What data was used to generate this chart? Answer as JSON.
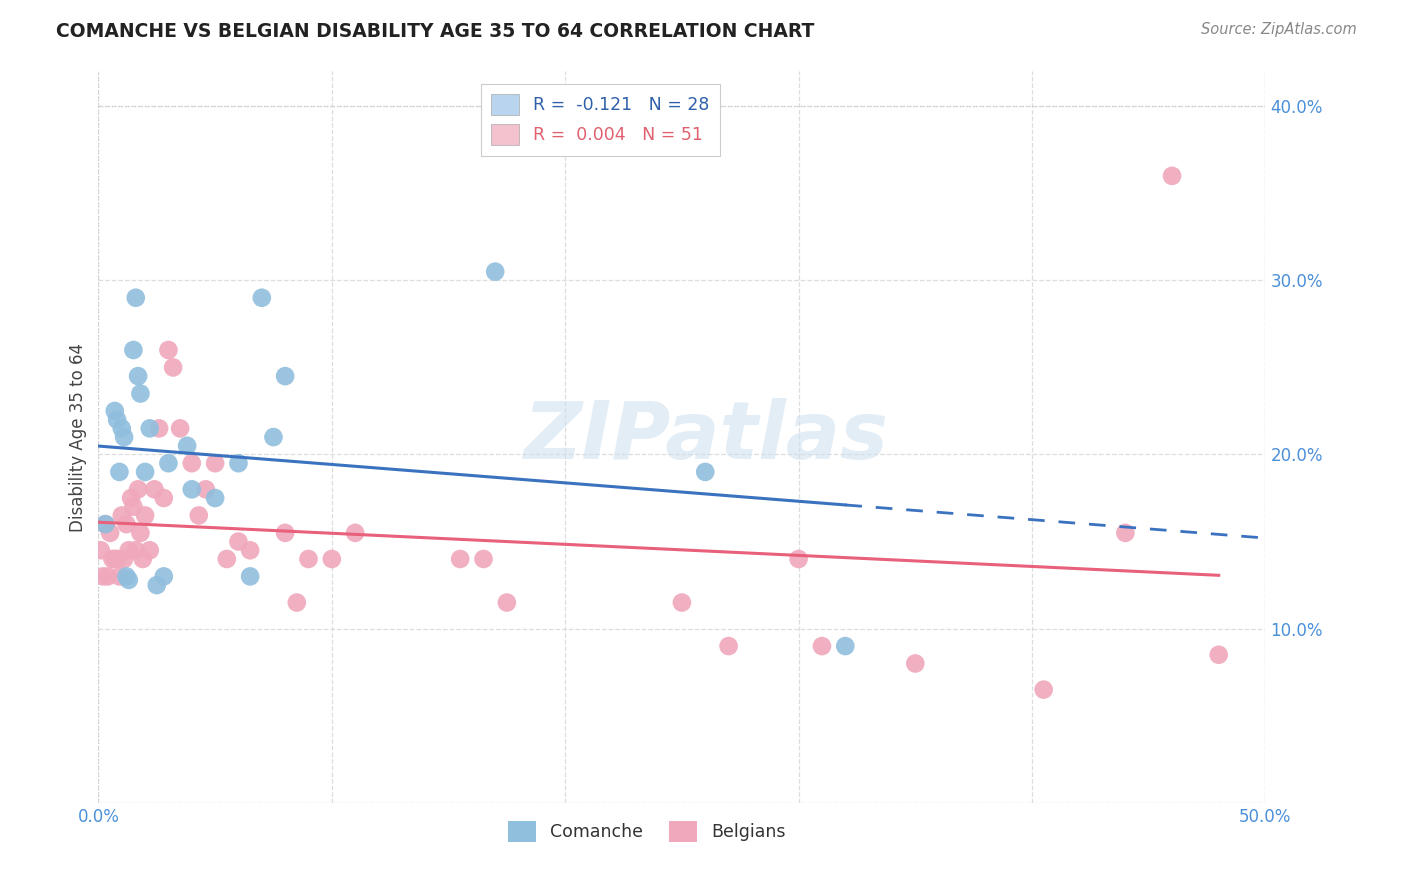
{
  "title": "COMANCHE VS BELGIAN DISABILITY AGE 35 TO 64 CORRELATION CHART",
  "source": "Source: ZipAtlas.com",
  "ylabel": "Disability Age 35 to 64",
  "xlim": [
    0.0,
    0.5
  ],
  "ylim": [
    0.0,
    0.42
  ],
  "legend_labels": [
    "R =  -0.121   N = 28",
    "R =  0.004   N = 51"
  ],
  "legend_colors": [
    "#b8d4ee",
    "#f4c2ce"
  ],
  "comanche_color": "#90bedd",
  "belgian_color": "#f0a8bc",
  "trendline_comanche_color": "#3b72bf",
  "trendline_belgian_color": "#e8607a",
  "watermark": "ZIPatlas",
  "comanche_x": [
    0.003,
    0.007,
    0.008,
    0.009,
    0.01,
    0.011,
    0.012,
    0.013,
    0.015,
    0.016,
    0.017,
    0.018,
    0.02,
    0.022,
    0.025,
    0.028,
    0.03,
    0.038,
    0.04,
    0.05,
    0.06,
    0.065,
    0.07,
    0.075,
    0.08,
    0.17,
    0.26,
    0.32
  ],
  "comanche_y": [
    0.16,
    0.225,
    0.22,
    0.19,
    0.215,
    0.21,
    0.13,
    0.128,
    0.26,
    0.29,
    0.245,
    0.235,
    0.19,
    0.215,
    0.125,
    0.13,
    0.195,
    0.205,
    0.18,
    0.175,
    0.195,
    0.13,
    0.29,
    0.21,
    0.245,
    0.305,
    0.19,
    0.09
  ],
  "belgian_x": [
    0.001,
    0.002,
    0.003,
    0.004,
    0.005,
    0.006,
    0.007,
    0.008,
    0.009,
    0.01,
    0.011,
    0.012,
    0.013,
    0.014,
    0.015,
    0.016,
    0.017,
    0.018,
    0.019,
    0.02,
    0.022,
    0.024,
    0.026,
    0.028,
    0.03,
    0.032,
    0.035,
    0.04,
    0.043,
    0.046,
    0.05,
    0.055,
    0.06,
    0.065,
    0.08,
    0.085,
    0.09,
    0.1,
    0.11,
    0.155,
    0.165,
    0.175,
    0.25,
    0.27,
    0.3,
    0.31,
    0.35,
    0.405,
    0.44,
    0.46,
    0.48
  ],
  "belgian_y": [
    0.145,
    0.13,
    0.16,
    0.13,
    0.155,
    0.14,
    0.14,
    0.14,
    0.13,
    0.165,
    0.14,
    0.16,
    0.145,
    0.175,
    0.17,
    0.145,
    0.18,
    0.155,
    0.14,
    0.165,
    0.145,
    0.18,
    0.215,
    0.175,
    0.26,
    0.25,
    0.215,
    0.195,
    0.165,
    0.18,
    0.195,
    0.14,
    0.15,
    0.145,
    0.155,
    0.115,
    0.14,
    0.14,
    0.155,
    0.14,
    0.14,
    0.115,
    0.115,
    0.09,
    0.14,
    0.09,
    0.08,
    0.065,
    0.155,
    0.36,
    0.085
  ],
  "background_color": "#ffffff",
  "grid_color": "#dddddd",
  "trendline_comanche_solid_end": 0.32,
  "trendline_comanche_dash_end": 0.5
}
